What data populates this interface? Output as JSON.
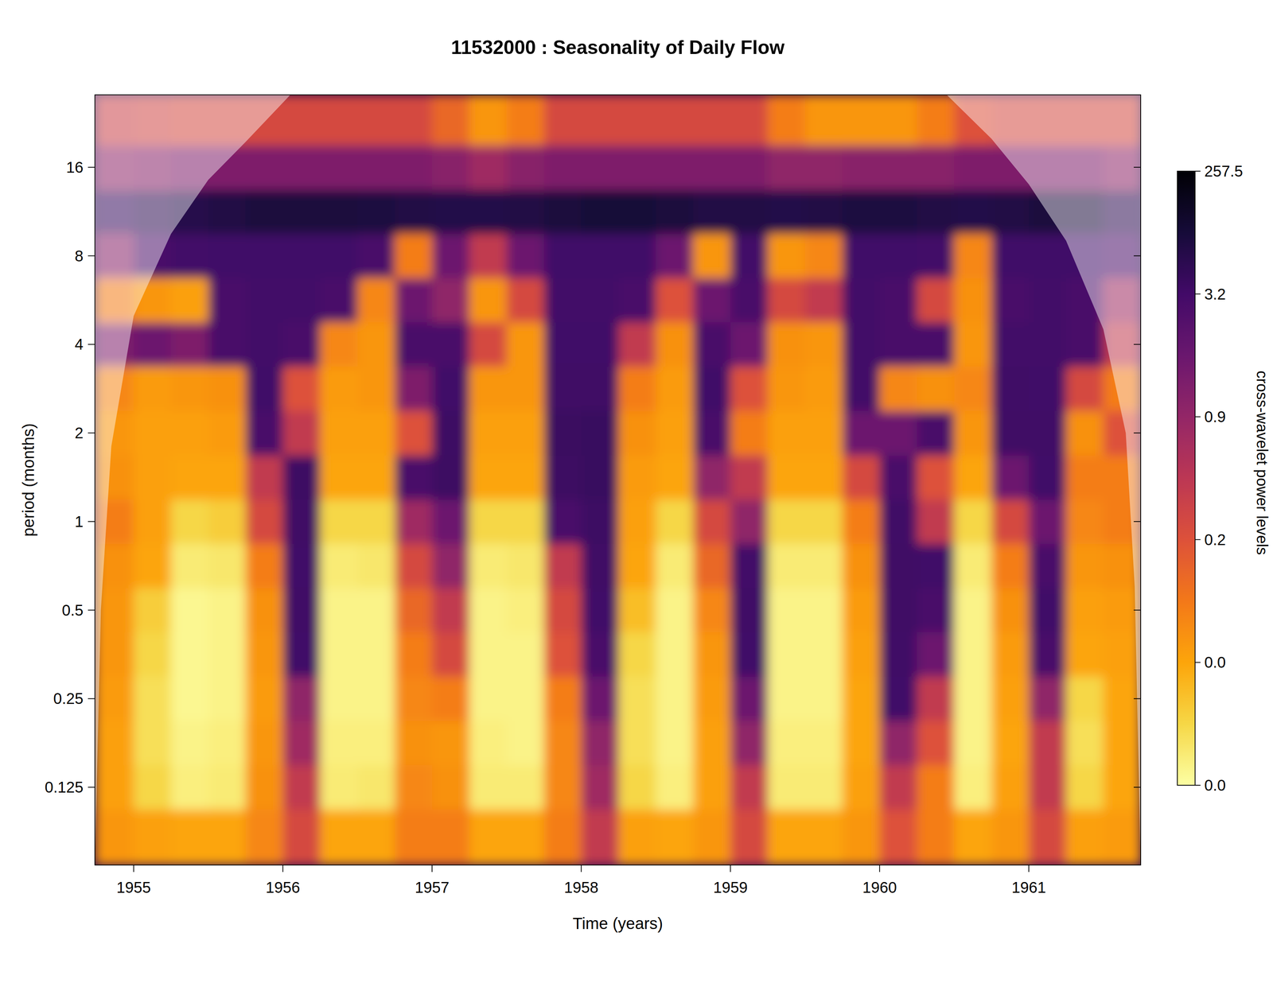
{
  "chart_data": {
    "type": "heatmap",
    "title": "11532000 : Seasonality of Daily Flow",
    "x_label": "Time (years)",
    "y_label": "period (months)",
    "log": "y",
    "xlim": [
      1954.74,
      1961.75
    ],
    "ylim": [
      0.068,
      28.2
    ],
    "xticks": [
      1955,
      1956,
      1957,
      1958,
      1959,
      1960,
      1961
    ],
    "yticks": [
      0.125,
      0.25,
      0.5,
      1,
      2,
      4,
      8,
      16
    ],
    "x": [
      1954.875,
      1955.125,
      1955.375,
      1955.625,
      1955.875,
      1956.125,
      1956.375,
      1956.625,
      1956.875,
      1957.125,
      1957.375,
      1957.625,
      1957.875,
      1958.125,
      1958.375,
      1958.625,
      1958.875,
      1959.125,
      1959.375,
      1959.625,
      1959.875,
      1960.125,
      1960.375,
      1960.625,
      1960.875,
      1961.125,
      1961.375,
      1961.625
    ],
    "y": [
      0.0884,
      0.125,
      0.177,
      0.25,
      0.354,
      0.5,
      0.707,
      1,
      1.41,
      2,
      2.83,
      4,
      5.66,
      8,
      11.3,
      16,
      22.6
    ],
    "z": [
      [
        0.05,
        0.03,
        0.03,
        0.04,
        0.05,
        0.05,
        0.06,
        0.1,
        0.06,
        0.05,
        0.08,
        1.5,
        0.1,
        1.2,
        30,
        1,
        0.4
      ],
      [
        0.03,
        0.01,
        0.008,
        0.008,
        0.01,
        0.012,
        0.02,
        0.03,
        0.03,
        0.03,
        0.04,
        2,
        0.05,
        3,
        60,
        1.2,
        0.35
      ],
      [
        0.02,
        0.004,
        0.003,
        0.002,
        0.002,
        0.002,
        0.005,
        0.01,
        0.02,
        0.03,
        0.05,
        1.5,
        0.03,
        4,
        80,
        1.5,
        0.3
      ],
      [
        0.02,
        0.005,
        0.004,
        0.003,
        0.003,
        0.003,
        0.006,
        0.012,
        0.02,
        0.04,
        0.06,
        3,
        3,
        5,
        100,
        1.5,
        0.3
      ],
      [
        0.08,
        0.06,
        0.05,
        0.04,
        0.05,
        0.06,
        0.1,
        0.3,
        0.5,
        3,
        5,
        4,
        4,
        6,
        120,
        1.5,
        0.3
      ],
      [
        0.3,
        0.5,
        0.8,
        1,
        5,
        8,
        5,
        10,
        15,
        0.5,
        0.2,
        3,
        4,
        6,
        120,
        1.5,
        0.3
      ],
      [
        0.02,
        0.005,
        0.004,
        0.003,
        0.003,
        0.003,
        0.005,
        0.01,
        0.02,
        0.03,
        0.04,
        0.08,
        3,
        5,
        120,
        1.5,
        0.3
      ],
      [
        0.02,
        0.006,
        0.004,
        0.003,
        0.003,
        0.003,
        0.006,
        0.01,
        0.02,
        0.03,
        0.05,
        0.05,
        0.08,
        3,
        110,
        1.5,
        0.3
      ],
      [
        0.1,
        0.08,
        0.06,
        0.08,
        0.1,
        0.15,
        0.3,
        0.8,
        3,
        0.2,
        1.5,
        3,
        2,
        0.1,
        100,
        1.5,
        0.3
      ],
      [
        0.1,
        0.06,
        0.05,
        0.1,
        0.3,
        0.5,
        1,
        2,
        20,
        15,
        5,
        3,
        1,
        2,
        90,
        1.2,
        0.15
      ],
      [
        0.02,
        0.005,
        0.004,
        0.003,
        0.003,
        0.003,
        0.005,
        0.01,
        0.02,
        0.03,
        0.05,
        0.3,
        0.05,
        0.5,
        90,
        0.8,
        0.05
      ],
      [
        0.02,
        0.005,
        0.003,
        0.003,
        0.003,
        0.004,
        0.006,
        0.01,
        0.02,
        0.03,
        0.05,
        0.05,
        0.3,
        2,
        100,
        1.2,
        0.1
      ],
      [
        0.1,
        0.08,
        0.08,
        0.1,
        0.2,
        0.3,
        0.5,
        3,
        20,
        25,
        10,
        5,
        4,
        6,
        120,
        1.5,
        0.3
      ],
      [
        0.5,
        0.8,
        1,
        2,
        3,
        5,
        10,
        15,
        30,
        30,
        10,
        5,
        4,
        6,
        130,
        1.5,
        0.3
      ],
      [
        0.03,
        0.01,
        0.008,
        0.008,
        0.01,
        0.015,
        0.02,
        0.03,
        0.04,
        0.06,
        0.1,
        0.5,
        3,
        5,
        130,
        1.5,
        0.3
      ],
      [
        0.02,
        0.004,
        0.003,
        0.003,
        0.003,
        0.003,
        0.005,
        0.01,
        0.02,
        0.03,
        0.04,
        0.06,
        0.2,
        2,
        120,
        1.5,
        0.3
      ],
      [
        0.05,
        0.03,
        0.03,
        0.04,
        0.05,
        0.08,
        0.15,
        0.3,
        1,
        3,
        5,
        3,
        2,
        0.05,
        100,
        1.5,
        0.3
      ],
      [
        0.3,
        0.5,
        1,
        2,
        5,
        8,
        4,
        1,
        0.5,
        0.1,
        0.2,
        2,
        3,
        4,
        100,
        1.5,
        0.3
      ],
      [
        0.02,
        0.005,
        0.004,
        0.003,
        0.003,
        0.003,
        0.005,
        0.01,
        0.02,
        0.03,
        0.05,
        0.06,
        0.3,
        0.05,
        90,
        1,
        0.1
      ],
      [
        0.02,
        0.005,
        0.004,
        0.003,
        0.003,
        0.003,
        0.005,
        0.01,
        0.02,
        0.03,
        0.04,
        0.05,
        0.5,
        0.08,
        100,
        1,
        0.05
      ],
      [
        0.05,
        0.03,
        0.02,
        0.02,
        0.03,
        0.04,
        0.06,
        0.1,
        0.3,
        2,
        4,
        4,
        4,
        5,
        110,
        1.2,
        0.05
      ],
      [
        0.2,
        0.5,
        1,
        5,
        8,
        10,
        12,
        8,
        3,
        2,
        0.08,
        3,
        3,
        5,
        110,
        1.2,
        0.05
      ],
      [
        0.1,
        0.1,
        0.2,
        0.5,
        2,
        3,
        5,
        0.5,
        0.2,
        3,
        0.06,
        3,
        0.3,
        4,
        100,
        1.2,
        0.1
      ],
      [
        0.02,
        0.004,
        0.003,
        0.003,
        0.003,
        0.003,
        0.005,
        0.01,
        0.02,
        0.05,
        0.08,
        0.05,
        0.06,
        0.08,
        90,
        1.5,
        0.2
      ],
      [
        0.05,
        0.03,
        0.02,
        0.03,
        0.04,
        0.06,
        0.1,
        0.3,
        2,
        10,
        8,
        4,
        3,
        5,
        100,
        1.5,
        0.3
      ],
      [
        0.3,
        0.5,
        0.5,
        1,
        3,
        5,
        3,
        2,
        5,
        8,
        6,
        4,
        4,
        6,
        120,
        1.5,
        0.3
      ],
      [
        0.03,
        0.01,
        0.008,
        0.01,
        0.02,
        0.03,
        0.05,
        0.08,
        0.1,
        0.06,
        0.3,
        3,
        3,
        5,
        120,
        1.5,
        0.3
      ],
      [
        0.04,
        0.02,
        0.02,
        0.02,
        0.03,
        0.04,
        0.06,
        0.1,
        0.1,
        0.2,
        0.1,
        0.5,
        0.8,
        3,
        60,
        1,
        0.3
      ]
    ],
    "colorbar": {
      "label": "cross-wavelet power levels",
      "ticks": [
        {
          "value": 0,
          "label": "0.0"
        },
        {
          "value": 0.02,
          "label": "0.0"
        },
        {
          "value": 0.2,
          "label": "0.2"
        },
        {
          "value": 0.9,
          "label": "0.9"
        },
        {
          "value": 3.2,
          "label": "3.2"
        },
        {
          "value": 257.5,
          "label": "257.5"
        }
      ]
    },
    "coi": {
      "x": [
        1954.74,
        1954.78,
        1954.85,
        1955.0,
        1955.25,
        1955.5,
        1955.75,
        1956.05,
        1960.45,
        1960.75,
        1961.0,
        1961.25,
        1961.5,
        1961.65,
        1961.71,
        1961.75
      ],
      "period": [
        0.068,
        0.5,
        1.8,
        5,
        9.5,
        14.5,
        19.5,
        28.2,
        28.2,
        20,
        14,
        9,
        4.5,
        2,
        0.6,
        0.068
      ]
    }
  }
}
